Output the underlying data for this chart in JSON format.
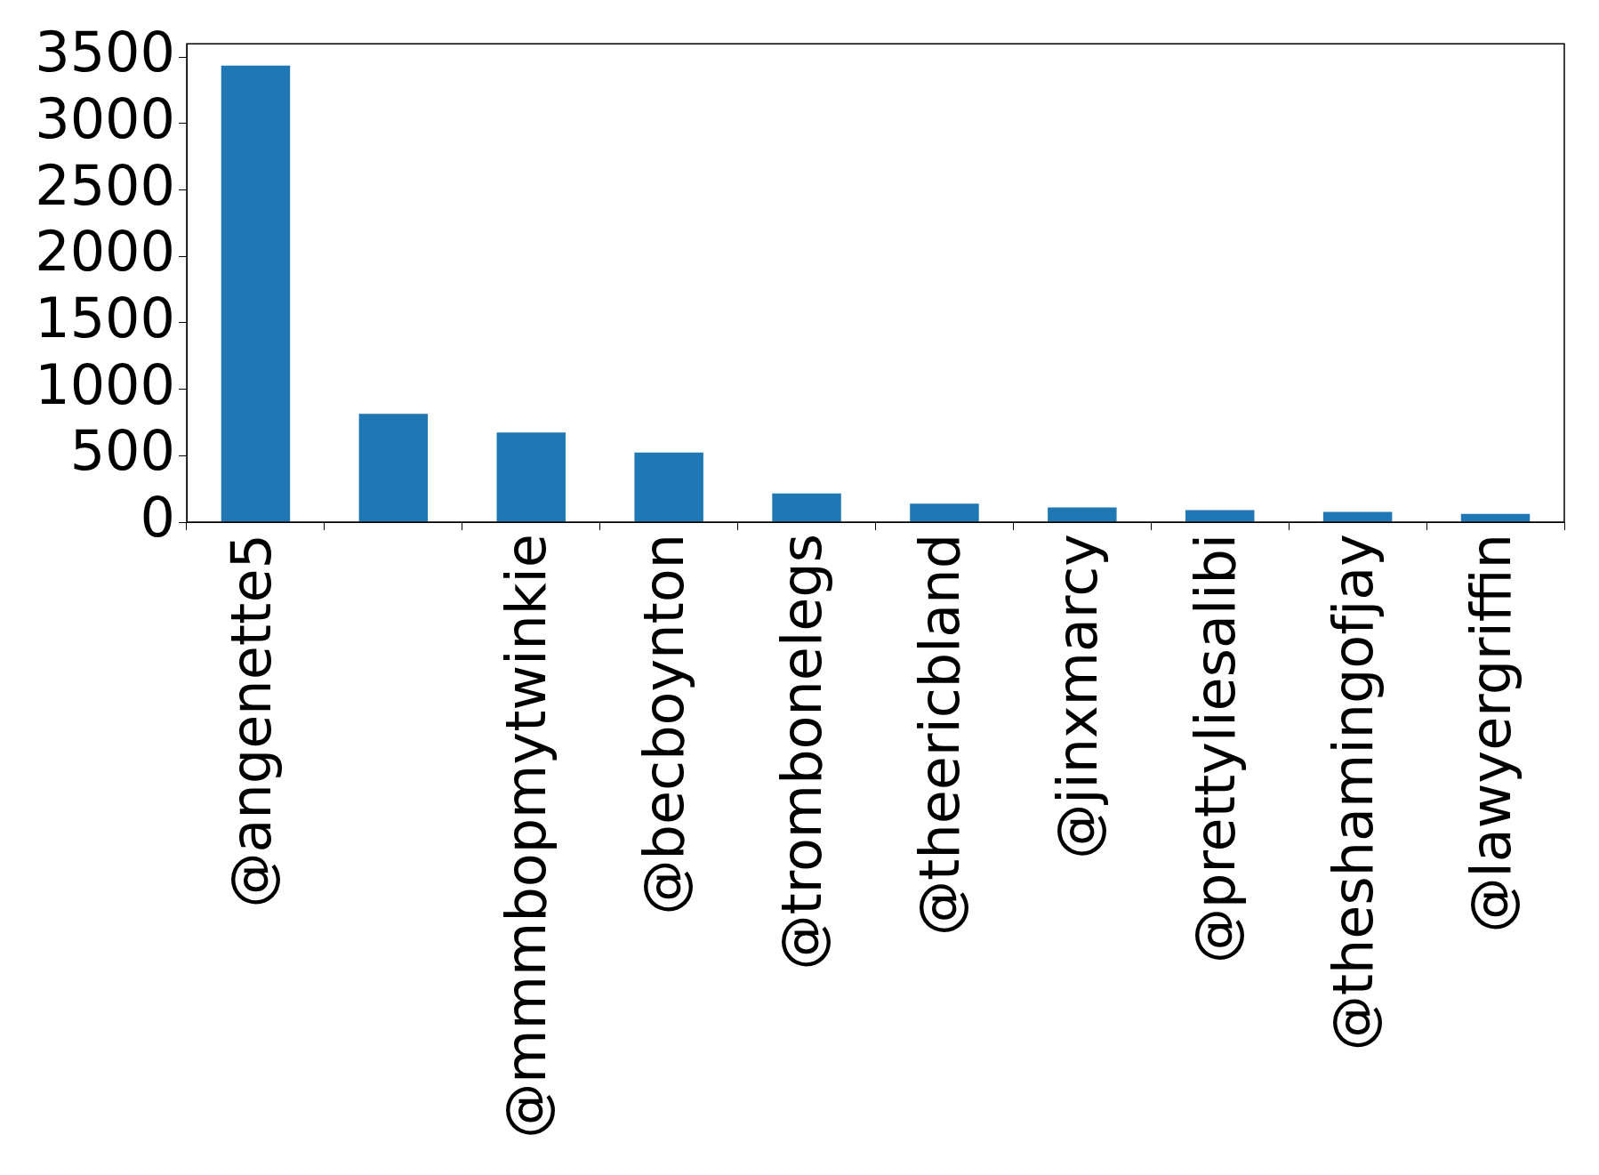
{
  "chart_data": {
    "type": "bar",
    "categories": [
      "@angenette5",
      null,
      "@mmmbopmytwinkie",
      "@becboynton",
      "@trombonelegs",
      "@theericbland",
      "@jinxmarcy",
      "@prettyliesalibi",
      "@theshamingofjay",
      "@lawyergriffin"
    ],
    "values": [
      3435,
      815,
      675,
      524,
      216,
      139,
      111,
      91,
      77,
      62
    ],
    "color": "#1f77b4",
    "ylim": [
      0,
      3600
    ],
    "yticks": [
      0,
      500,
      1000,
      1500,
      2000,
      2500,
      3000,
      3500
    ],
    "grid": false,
    "legend": false
  }
}
